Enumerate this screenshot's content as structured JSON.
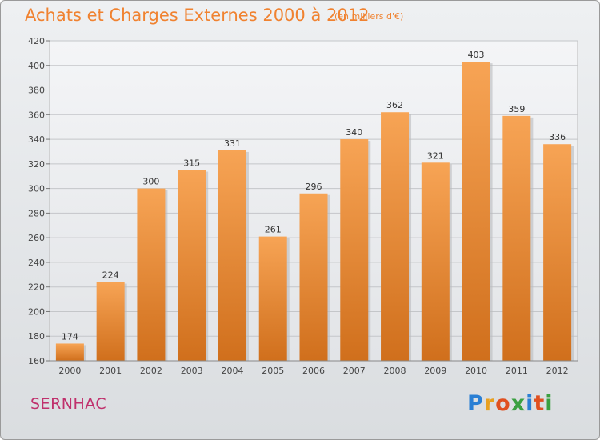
{
  "header": {
    "title": "Achats et Charges Externes 2000 à 2012",
    "unit": "(en milliers d'€)"
  },
  "footer": {
    "commune": "SERNHAC",
    "brand": "Proxiti",
    "brand_colors": [
      "#2a7fd4",
      "#e8a020",
      "#e05020",
      "#3aa040",
      "#2a7fd4",
      "#e05020",
      "#3aa040"
    ]
  },
  "colors": {
    "bar_top": "#f7a455",
    "bar_bottom": "#d06f1c",
    "title": "#f08230",
    "commune": "#c0306c"
  },
  "chart_data": {
    "type": "bar",
    "title": "Achats et Charges Externes 2000 à 2012",
    "subtitle": "(en milliers d'€)",
    "categories": [
      "2000",
      "2001",
      "2002",
      "2003",
      "2004",
      "2005",
      "2006",
      "2007",
      "2008",
      "2009",
      "2010",
      "2011",
      "2012"
    ],
    "values": [
      174,
      224,
      300,
      315,
      331,
      261,
      296,
      340,
      362,
      321,
      403,
      359,
      336
    ],
    "ylim": [
      160,
      420
    ],
    "yticks": [
      160,
      180,
      200,
      220,
      240,
      260,
      280,
      300,
      320,
      340,
      360,
      380,
      400,
      420
    ],
    "grid": true,
    "data_labels": true
  }
}
